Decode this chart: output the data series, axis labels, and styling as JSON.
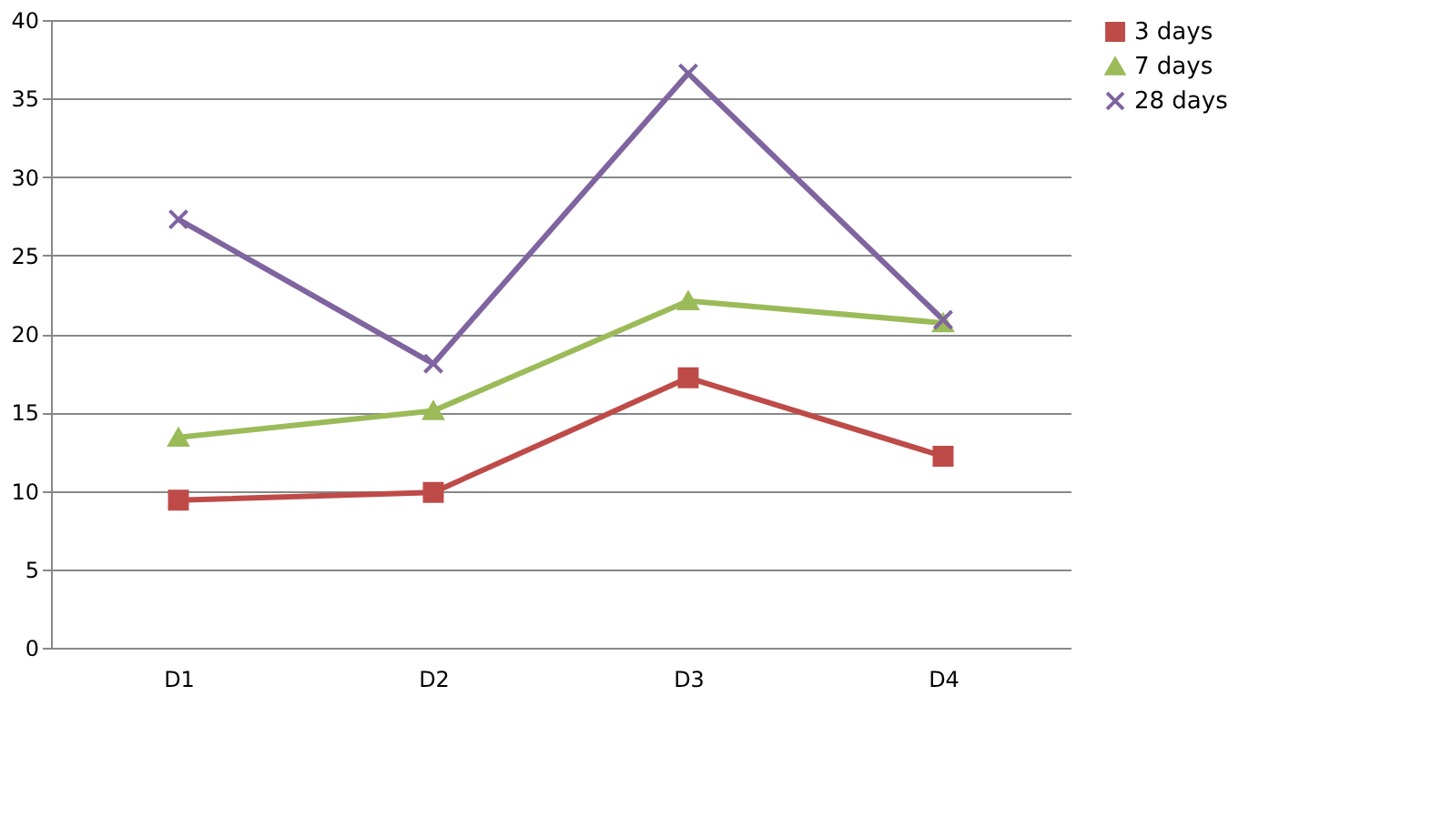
{
  "chart_data": {
    "type": "line",
    "categories": [
      "D1",
      "D2",
      "D3",
      "D4"
    ],
    "series": [
      {
        "name": "3 days",
        "color": "#be4b48",
        "marker": "square",
        "values": [
          9.4,
          9.9,
          17.2,
          12.2
        ]
      },
      {
        "name": "7 days",
        "color": "#9bbb59",
        "marker": "triangle",
        "values": [
          13.4,
          15.1,
          22.1,
          20.7
        ]
      },
      {
        "name": "28 days",
        "color": "#7f64a0",
        "marker": "cross",
        "values": [
          27.3,
          18.1,
          36.6,
          20.9
        ]
      }
    ],
    "ylim": [
      0,
      40
    ],
    "yticks": [
      0,
      5,
      10,
      15,
      20,
      25,
      30,
      35,
      40
    ],
    "grid": "y",
    "legend": "right",
    "line_style": "solid"
  }
}
